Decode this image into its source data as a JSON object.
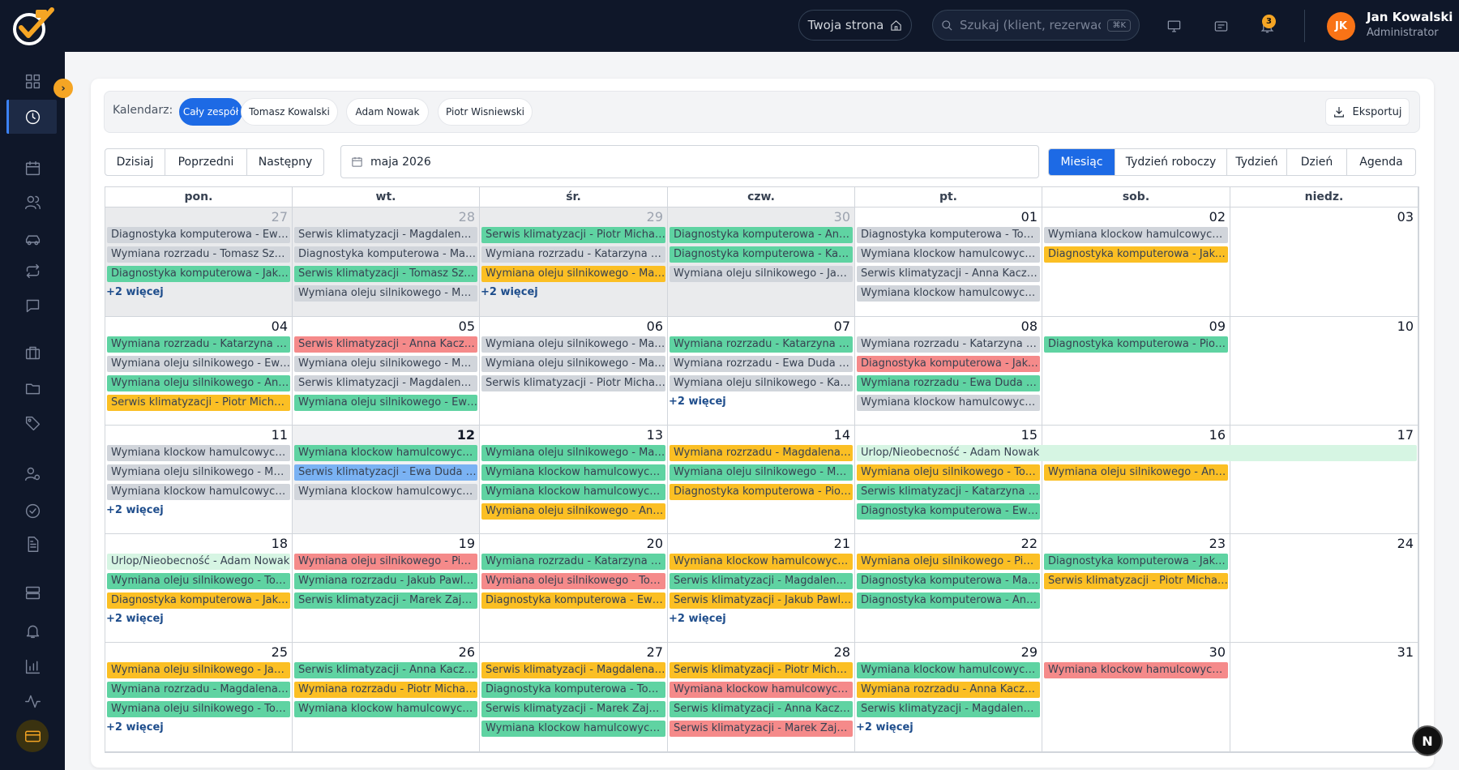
{
  "user": {
    "initials": "JK",
    "name": "Jan Kowalski",
    "role": "Administrator"
  },
  "header": {
    "twoja_strona": "Twoja strona",
    "search_placeholder": "Szukaj (klient, rezerwacja...",
    "search_shortcut": "⌘K",
    "notif_count": "3"
  },
  "sidebar": {
    "icons": [
      "dashboard-icon",
      "clock-icon",
      "calendar-icon",
      "users-icon",
      "car-icon",
      "repeat-icon",
      "chat-icon",
      "briefcase-icon",
      "folder-icon",
      "tag-icon",
      "user-cog-icon",
      "check-circle-icon",
      "file-text-icon",
      "server-icon",
      "bell-icon",
      "bar-chart-icon",
      "activity-icon",
      "card-icon"
    ],
    "active": "clock-icon"
  },
  "filter": {
    "label": "Kalendarz:",
    "chips": [
      "Cały zespół",
      "Tomasz Kowalski",
      "Adam Nowak",
      "Piotr Wisniewski"
    ],
    "active": 0,
    "export": "Eksportuj"
  },
  "nav": {
    "today": "Dzisiaj",
    "prev": "Poprzedni",
    "next": "Następny",
    "date": "maja 2026"
  },
  "views": {
    "items": [
      "Miesiąc",
      "Tydzień roboczy",
      "Tydzień",
      "Dzień",
      "Agenda"
    ],
    "active": 0
  },
  "colors": {
    "gray": "#d1d5db",
    "green": "#5fd3a2",
    "yellow": "#fbbf24",
    "red": "#f58a8a",
    "blue": "#7ab2f3",
    "lightgreen": "#d6f5e3",
    "primary": "#1d6ae5",
    "accent": "#f5a524"
  },
  "calendar": {
    "weekdays": [
      "pon.",
      "wt.",
      "śr.",
      "czw.",
      "pt.",
      "sob.",
      "niedz."
    ],
    "weeks": [
      {
        "days": [
          {
            "num": "27",
            "off": true,
            "events": [
              {
                "t": "Diagnostyka komputerowa - Ewa ...",
                "c": "gray"
              },
              {
                "t": "Wymiana rozrzadu - Tomasz Szymc...",
                "c": "gray"
              },
              {
                "t": "Diagnostyka komputerowa - Jakub ...",
                "c": "green"
              }
            ],
            "more": "+2 więcej"
          },
          {
            "num": "28",
            "off": true,
            "events": [
              {
                "t": "Serwis klimatyzacji - Magdalena Kr...",
                "c": "gray"
              },
              {
                "t": "Diagnostyka komputerowa - Magd...",
                "c": "gray"
              },
              {
                "t": "Serwis klimatyzacji - Tomasz Szymc...",
                "c": "green"
              },
              {
                "t": "Wymiana oleju silnikowego - Mare...",
                "c": "gray"
              }
            ]
          },
          {
            "num": "29",
            "off": true,
            "events": [
              {
                "t": "Serwis klimatyzacji - Piotr Michalsk...",
                "c": "green"
              },
              {
                "t": "Wymiana rozrzadu - Katarzyna Bar...",
                "c": "gray"
              },
              {
                "t": "Wymiana oleju silnikowego - Mare...",
                "c": "yellow"
              }
            ],
            "more": "+2 więcej"
          },
          {
            "num": "30",
            "off": true,
            "events": [
              {
                "t": "Diagnostyka komputerowa - Anna ...",
                "c": "green"
              },
              {
                "t": "Diagnostyka komputerowa - Katar...",
                "c": "green"
              },
              {
                "t": "Wymiana oleju silnikowego - Jakub...",
                "c": "gray"
              }
            ]
          },
          {
            "num": "01",
            "events": [
              {
                "t": "Diagnostyka komputerowa - Toma...",
                "c": "gray"
              },
              {
                "t": "Wymiana klockow hamulcowych - ...",
                "c": "gray"
              },
              {
                "t": "Serwis klimatyzacji - Anna Kaczmar...",
                "c": "gray"
              },
              {
                "t": "Wymiana klockow hamulcowych - J...",
                "c": "gray"
              }
            ]
          },
          {
            "num": "02",
            "events": [
              {
                "t": "Wymiana klockow hamulcowych - ...",
                "c": "gray"
              },
              {
                "t": "Diagnostyka komputerowa - Jakub ...",
                "c": "yellow"
              }
            ]
          },
          {
            "num": "03",
            "events": []
          }
        ]
      },
      {
        "days": [
          {
            "num": "04",
            "events": [
              {
                "t": "Wymiana rozrzadu - Katarzyna Bar...",
                "c": "green"
              },
              {
                "t": "Wymiana oleju silnikowego - Ewa ...",
                "c": "gray"
              },
              {
                "t": "Wymiana oleju silnikowego - Anna ...",
                "c": "green"
              },
              {
                "t": "Serwis klimatyzacji - Piotr Michalsk...",
                "c": "yellow"
              }
            ]
          },
          {
            "num": "05",
            "events": [
              {
                "t": "Serwis klimatyzacji - Anna Kaczmar...",
                "c": "red"
              },
              {
                "t": "Wymiana oleju silnikowego - Magdalena Kr...",
                "c": "gray"
              },
              {
                "t": "Serwis klimatyzacji - Magdalena Kr...",
                "c": "gray"
              },
              {
                "t": "Wymiana oleju silnikowego - Ewa ...",
                "c": "green"
              }
            ]
          },
          {
            "num": "06",
            "events": [
              {
                "t": "Wymiana oleju silnikowego - Mare...",
                "c": "gray"
              },
              {
                "t": "Wymiana oleju silnikowego - Magd...",
                "c": "gray"
              },
              {
                "t": "Serwis klimatyzacji - Piotr Michalsk...",
                "c": "gray"
              }
            ]
          },
          {
            "num": "07",
            "events": [
              {
                "t": "Wymiana rozrzadu - Katarzyna Bar...",
                "c": "green"
              },
              {
                "t": "Wymiana rozrzadu - Ewa Duda (Fo...",
                "c": "gray"
              },
              {
                "t": "Wymiana oleju silnikowego - Katar...",
                "c": "gray"
              }
            ],
            "more": "+2 więcej"
          },
          {
            "num": "08",
            "events": [
              {
                "t": "Wymiana rozrzadu - Katarzyna Bar...",
                "c": "gray"
              },
              {
                "t": "Diagnostyka komputerowa - Jakub ...",
                "c": "red"
              },
              {
                "t": "Wymiana rozrzadu - Ewa Duda (Fo...",
                "c": "green"
              },
              {
                "t": "Wymiana klockow hamulcowych - ...",
                "c": "gray"
              }
            ]
          },
          {
            "num": "09",
            "events": [
              {
                "t": "Diagnostyka komputerowa - Piotr ...",
                "c": "green"
              }
            ]
          },
          {
            "num": "10",
            "events": []
          }
        ]
      },
      {
        "span": {
          "t": "Urlop/Nieobecność - Adam Nowak",
          "c": "lightgreen",
          "from": 4,
          "to": 6
        },
        "days": [
          {
            "num": "11",
            "events": [
              {
                "t": "Wymiana klockow hamulcowych - J...",
                "c": "gray"
              },
              {
                "t": "Wymiana oleju silnikowego - Magd...",
                "c": "gray"
              },
              {
                "t": "Wymiana klockow hamulcowych - ...",
                "c": "gray"
              }
            ],
            "more": "+2 więcej"
          },
          {
            "num": "12",
            "today": true,
            "events": [
              {
                "t": "Wymiana klockow hamulcowych - ...",
                "c": "green"
              },
              {
                "t": "Serwis klimatyzacji - Ewa Duda (Fo...",
                "c": "blue"
              },
              {
                "t": "Wymiana klockow hamulcowych - ...",
                "c": "gray"
              }
            ]
          },
          {
            "num": "13",
            "events": [
              {
                "t": "Wymiana oleju silnikowego - Magd...",
                "c": "green"
              },
              {
                "t": "Wymiana klockow hamulcowych - ...",
                "c": "green"
              },
              {
                "t": "Wymiana klockow hamulcowych - ...",
                "c": "green"
              },
              {
                "t": "Wymiana oleju silnikowego - Anna ...",
                "c": "yellow"
              }
            ]
          },
          {
            "num": "14",
            "events": [
              {
                "t": "Wymiana rozrzadu - Magdalena Kr...",
                "c": "yellow"
              },
              {
                "t": "Wymiana oleju silnikowego - Magd...",
                "c": "green"
              },
              {
                "t": "Diagnostyka komputerowa - Piotr ...",
                "c": "yellow"
              }
            ]
          },
          {
            "num": "15",
            "events": [
              {
                "t": "",
                "c": "none"
              },
              {
                "t": "Wymiana oleju silnikowego - Toma...",
                "c": "yellow"
              },
              {
                "t": "Serwis klimatyzacji - Katarzyna Bar...",
                "c": "green"
              },
              {
                "t": "Diagnostyka komputerowa - Ewa ...",
                "c": "green"
              }
            ]
          },
          {
            "num": "16",
            "events": [
              {
                "t": "",
                "c": "none"
              },
              {
                "t": "Wymiana oleju silnikowego - Anna ...",
                "c": "yellow"
              }
            ]
          },
          {
            "num": "17",
            "events": []
          }
        ]
      },
      {
        "days": [
          {
            "num": "18",
            "events": [
              {
                "t": "Urlop/Nieobecność - Adam Nowak",
                "c": "lightgreen"
              },
              {
                "t": "Wymiana oleju silnikowego - Toma...",
                "c": "green"
              },
              {
                "t": "Diagnostyka komputerowa - Jakub ...",
                "c": "yellow"
              }
            ],
            "more": "+2 więcej"
          },
          {
            "num": "19",
            "events": [
              {
                "t": "Wymiana oleju silnikowego - Piotr ...",
                "c": "red"
              },
              {
                "t": "Wymiana rozrzadu - Jakub Pawlak (...",
                "c": "green"
              },
              {
                "t": "Serwis klimatyzacji - Marek Zajac (...",
                "c": "green"
              }
            ]
          },
          {
            "num": "20",
            "events": [
              {
                "t": "Wymiana rozrzadu - Katarzyna Bar...",
                "c": "green"
              },
              {
                "t": "Wymiana oleju silnikowego - Toma...",
                "c": "red"
              },
              {
                "t": "Diagnostyka komputerowa - Ewa ...",
                "c": "yellow"
              }
            ]
          },
          {
            "num": "21",
            "events": [
              {
                "t": "Wymiana klockow hamulcowych - ...",
                "c": "yellow"
              },
              {
                "t": "Serwis klimatyzacji - Magdalena Kr...",
                "c": "green"
              },
              {
                "t": "Serwis klimatyzacji - Jakub Pawlak (...",
                "c": "yellow"
              }
            ],
            "more": "+2 więcej"
          },
          {
            "num": "22",
            "events": [
              {
                "t": "Wymiana oleju silnikowego - Piotr ...",
                "c": "yellow"
              },
              {
                "t": "Diagnostyka komputerowa - Magd...",
                "c": "green"
              },
              {
                "t": "Diagnostyka komputerowa - Anna ...",
                "c": "green"
              }
            ]
          },
          {
            "num": "23",
            "events": [
              {
                "t": "Diagnostyka komputerowa - Jakub ...",
                "c": "green"
              },
              {
                "t": "Serwis klimatyzacji - Piotr Michalsk...",
                "c": "yellow"
              }
            ]
          },
          {
            "num": "24",
            "events": []
          }
        ]
      },
      {
        "days": [
          {
            "num": "25",
            "events": [
              {
                "t": "Wymiana oleju silnikowego - Jakub...",
                "c": "yellow"
              },
              {
                "t": "Wymiana rozrzadu - Magdalena Kr...",
                "c": "green"
              },
              {
                "t": "Wymiana oleju silnikowego - Toma...",
                "c": "green"
              }
            ],
            "more": "+2 więcej"
          },
          {
            "num": "26",
            "events": [
              {
                "t": "Serwis klimatyzacji - Anna Kaczmar...",
                "c": "green"
              },
              {
                "t": "Wymiana rozrzadu - Piotr Michalsk...",
                "c": "yellow"
              },
              {
                "t": "Wymiana klockow hamulcowych - J...",
                "c": "green"
              }
            ]
          },
          {
            "num": "27",
            "events": [
              {
                "t": "Serwis klimatyzacji - Magdalena Kr...",
                "c": "yellow"
              },
              {
                "t": "Diagnostyka komputerowa - Toma...",
                "c": "green"
              },
              {
                "t": "Serwis klimatyzacji - Marek Zajac (...",
                "c": "green"
              },
              {
                "t": "Wymiana klockow hamulcowych - ...",
                "c": "green"
              }
            ]
          },
          {
            "num": "28",
            "events": [
              {
                "t": "Serwis klimatyzacji - Piotr Michalsk...",
                "c": "yellow"
              },
              {
                "t": "Wymiana klockow hamulcowych - ...",
                "c": "red"
              },
              {
                "t": "Serwis klimatyzacji - Anna Kaczmar...",
                "c": "green"
              },
              {
                "t": "Serwis klimatyzacji - Marek Zajac (...",
                "c": "red"
              }
            ]
          },
          {
            "num": "29",
            "events": [
              {
                "t": "Wymiana klockow hamulcowych - ...",
                "c": "green"
              },
              {
                "t": "Wymiana rozrzadu - Anna Kaczmar...",
                "c": "yellow"
              },
              {
                "t": "Serwis klimatyzacji - Magdalena Kr...",
                "c": "green"
              }
            ],
            "more": "+2 więcej"
          },
          {
            "num": "30",
            "events": [
              {
                "t": "Wymiana klockow hamulcowych - ...",
                "c": "red"
              }
            ]
          },
          {
            "num": "31",
            "events": []
          }
        ]
      }
    ]
  },
  "floating": {
    "letter": "N"
  }
}
